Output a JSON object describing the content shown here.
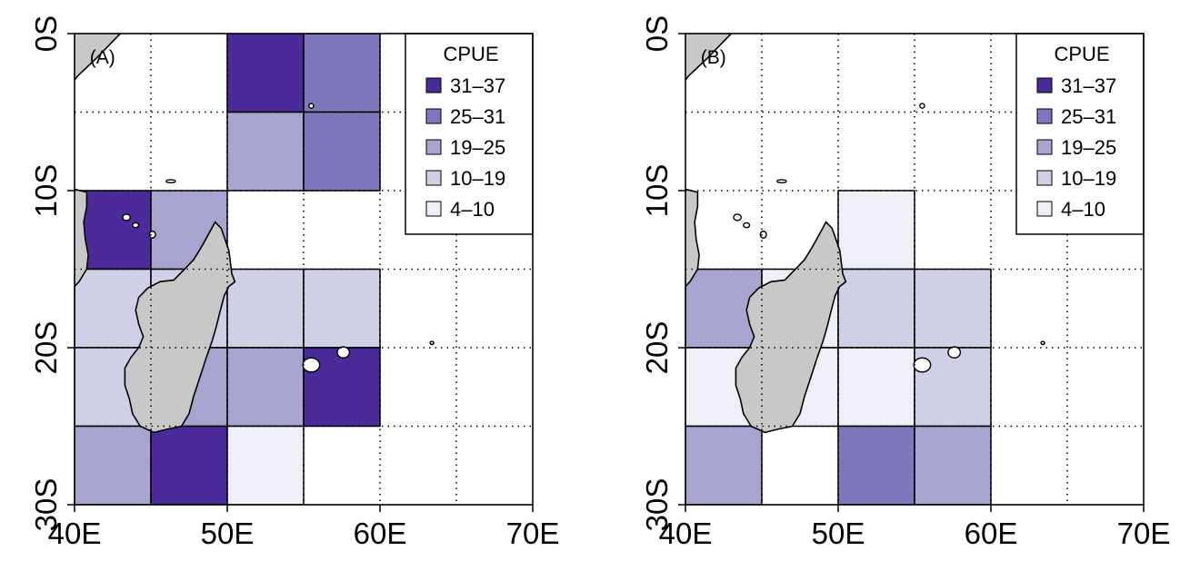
{
  "figure": {
    "x_ticks": [
      "40E",
      "50E",
      "60E",
      "70E"
    ],
    "y_ticks": [
      "0S",
      "10S",
      "20S",
      "30S"
    ],
    "legend": {
      "title": "CPUE",
      "classes": [
        {
          "label": "31–37",
          "color": "#4b2a99"
        },
        {
          "label": "25–31",
          "color": "#7e77bb"
        },
        {
          "label": "19–25",
          "color": "#a7a4cf"
        },
        {
          "label": "10–19",
          "color": "#cfcfe6"
        },
        {
          "label": "4–10",
          "color": "#efeff7"
        }
      ]
    },
    "colors": {
      "land": "#c8c8c8",
      "coast": "#000000",
      "grid": "#000000",
      "background": "#ffffff"
    }
  },
  "panels": [
    {
      "label": "(A)",
      "cells": [
        {
          "lon": 50,
          "lat": 0,
          "class": 0
        },
        {
          "lon": 55,
          "lat": 0,
          "class": 1
        },
        {
          "lon": 50,
          "lat": -5,
          "class": 2
        },
        {
          "lon": 55,
          "lat": -5,
          "class": 1
        },
        {
          "lon": 40,
          "lat": -10,
          "class": 0
        },
        {
          "lon": 45,
          "lat": -10,
          "class": 2
        },
        {
          "lon": 40,
          "lat": -15,
          "class": 3
        },
        {
          "lon": 45,
          "lat": -15,
          "class": 3
        },
        {
          "lon": 50,
          "lat": -15,
          "class": 3
        },
        {
          "lon": 55,
          "lat": -15,
          "class": 3
        },
        {
          "lon": 40,
          "lat": -20,
          "class": 3
        },
        {
          "lon": 45,
          "lat": -20,
          "class": 2
        },
        {
          "lon": 50,
          "lat": -20,
          "class": 2
        },
        {
          "lon": 55,
          "lat": -20,
          "class": 0
        },
        {
          "lon": 40,
          "lat": -25,
          "class": 2
        },
        {
          "lon": 45,
          "lat": -25,
          "class": 0
        },
        {
          "lon": 50,
          "lat": -25,
          "class": 4
        }
      ]
    },
    {
      "label": "(B)",
      "cells": [
        {
          "lon": 50,
          "lat": -10,
          "class": 4
        },
        {
          "lon": 40,
          "lat": -15,
          "class": 2
        },
        {
          "lon": 45,
          "lat": -15,
          "class": 4
        },
        {
          "lon": 50,
          "lat": -15,
          "class": 3
        },
        {
          "lon": 55,
          "lat": -15,
          "class": 3
        },
        {
          "lon": 40,
          "lat": -20,
          "class": 4
        },
        {
          "lon": 45,
          "lat": -20,
          "class": 4
        },
        {
          "lon": 50,
          "lat": -20,
          "class": 4
        },
        {
          "lon": 55,
          "lat": -20,
          "class": 3
        },
        {
          "lon": 40,
          "lat": -25,
          "class": 2
        },
        {
          "lon": 50,
          "lat": -25,
          "class": 1
        },
        {
          "lon": 55,
          "lat": -25,
          "class": 2
        }
      ]
    }
  ]
}
